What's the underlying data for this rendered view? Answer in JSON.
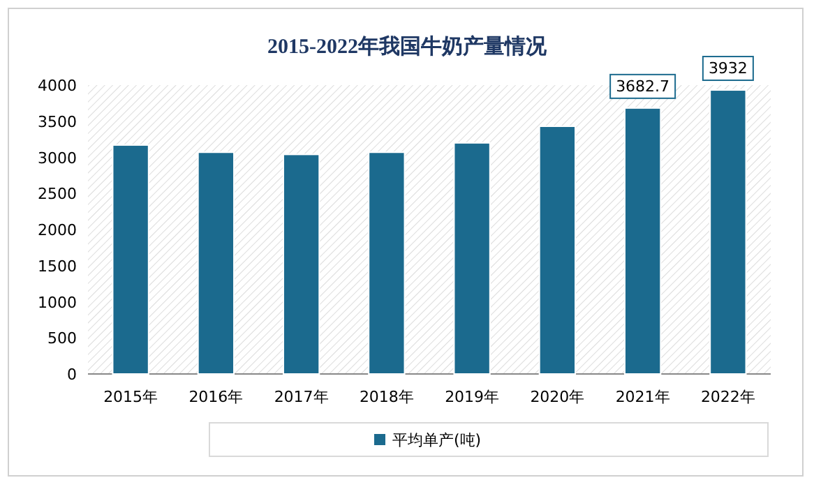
{
  "chart_data": {
    "type": "bar",
    "title": "2015-2022年我国牛奶产量情况",
    "categories": [
      "2015年",
      "2016年",
      "2017年",
      "2018年",
      "2019年",
      "2020年",
      "2021年",
      "2022年"
    ],
    "series": [
      {
        "name": "平均单产(吨)",
        "color": "#1b6a8e",
        "values": [
          3170,
          3070,
          3040,
          3070,
          3200,
          3430,
          3682.7,
          3932
        ],
        "value_labels": [
          null,
          null,
          null,
          null,
          null,
          null,
          "3682.7",
          "3932"
        ]
      }
    ],
    "ylim": [
      0,
      4000
    ],
    "yticks": [
      0,
      500,
      1000,
      1500,
      2000,
      2500,
      3000,
      3500,
      4000
    ],
    "grid": false,
    "legend": "bottom"
  }
}
